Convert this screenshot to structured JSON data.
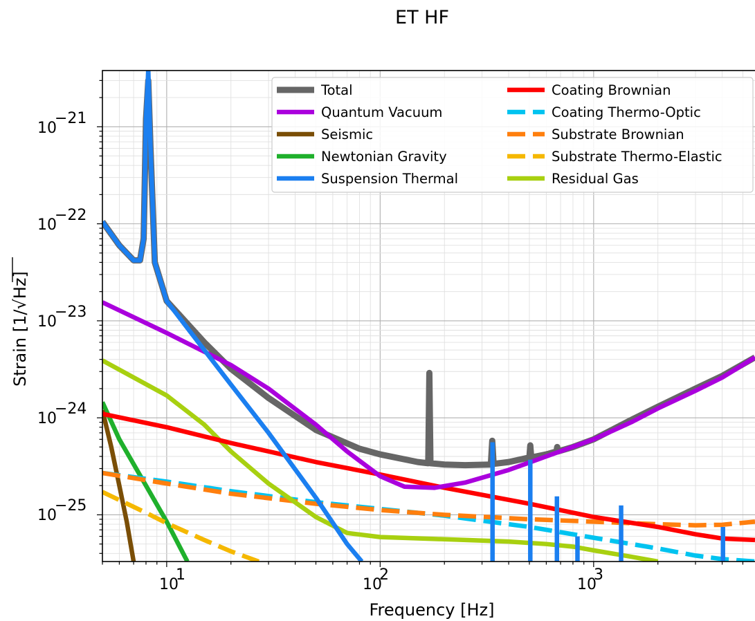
{
  "chart_data": {
    "type": "line",
    "title": "ET HF",
    "xlabel": "Frequency [Hz]",
    "ylabel_prefix": "Strain [1/",
    "ylabel_radical": "√",
    "ylabel_unit": "Hz",
    "ylabel_suffix": "]",
    "xscale": "log",
    "yscale": "log",
    "xlim": [
      5,
      5700
    ],
    "ylim": [
      3.3e-26,
      3.8e-21
    ],
    "grid": true,
    "legend_placement": "top-right",
    "x_ticks": [
      {
        "base": "10",
        "exp": "1",
        "value": 10
      },
      {
        "base": "10",
        "exp": "2",
        "value": 100
      },
      {
        "base": "10",
        "exp": "3",
        "value": 1000
      }
    ],
    "y_ticks": [
      {
        "base": "10",
        "exp": "−21",
        "value": 1e-21
      },
      {
        "base": "10",
        "exp": "−22",
        "value": 1e-22
      },
      {
        "base": "10",
        "exp": "−23",
        "value": 1e-23
      },
      {
        "base": "10",
        "exp": "−24",
        "value": 1e-24
      },
      {
        "base": "10",
        "exp": "−25",
        "value": 1e-25
      }
    ],
    "series": [
      {
        "name": "Total",
        "color": "#666666",
        "dash": false,
        "points": [
          [
            5,
            1.05e-22
          ],
          [
            6,
            6e-23
          ],
          [
            7,
            4.2e-23
          ],
          [
            7.5,
            4.2e-23
          ],
          [
            7.8,
            7e-23
          ],
          [
            8.0,
            1.2e-21
          ],
          [
            8.2,
            3e-21
          ],
          [
            8.4,
            6e-22
          ],
          [
            8.8,
            4e-23
          ],
          [
            10,
            1.6e-23
          ],
          [
            15,
            6e-24
          ],
          [
            20,
            3.2e-24
          ],
          [
            30,
            1.6e-24
          ],
          [
            50,
            7.5e-25
          ],
          [
            80,
            4.8e-25
          ],
          [
            100,
            4.2e-25
          ],
          [
            150,
            3.5e-25
          ],
          [
            168,
            3.4e-25
          ],
          [
            170,
            2.9e-24
          ],
          [
            172,
            3.4e-25
          ],
          [
            200,
            3.3e-25
          ],
          [
            250,
            3.25e-25
          ],
          [
            330,
            3.3e-25
          ],
          [
            335,
            5.8e-25
          ],
          [
            340,
            3.35e-25
          ],
          [
            400,
            3.5e-25
          ],
          [
            500,
            3.9e-25
          ],
          [
            505,
            5.2e-25
          ],
          [
            510,
            3.9e-25
          ],
          [
            600,
            4.2e-25
          ],
          [
            670,
            4.5e-25
          ],
          [
            675,
            5e-25
          ],
          [
            680,
            4.5e-25
          ],
          [
            800,
            5e-25
          ],
          [
            1000,
            6e-25
          ],
          [
            1500,
            9.5e-25
          ],
          [
            2000,
            1.3e-24
          ],
          [
            3000,
            2e-24
          ],
          [
            4000,
            2.7e-24
          ],
          [
            5700,
            4.2e-24
          ]
        ]
      },
      {
        "name": "Quantum Vacuum",
        "color": "#aa00dd",
        "dash": false,
        "points": [
          [
            5,
            1.55e-23
          ],
          [
            10,
            7.5e-24
          ],
          [
            20,
            3.5e-24
          ],
          [
            30,
            2e-24
          ],
          [
            50,
            8.5e-25
          ],
          [
            70,
            4.5e-25
          ],
          [
            100,
            2.5e-25
          ],
          [
            130,
            1.95e-25
          ],
          [
            180,
            1.9e-25
          ],
          [
            250,
            2.15e-25
          ],
          [
            400,
            2.9e-25
          ],
          [
            600,
            4e-25
          ],
          [
            1000,
            6e-25
          ],
          [
            1500,
            9e-25
          ],
          [
            2000,
            1.25e-24
          ],
          [
            3000,
            1.9e-24
          ],
          [
            4000,
            2.6e-24
          ],
          [
            5700,
            4.2e-24
          ]
        ]
      },
      {
        "name": "Seismic",
        "color": "#7a4e06",
        "dash": false,
        "points": [
          [
            5,
            1.2e-24
          ],
          [
            5.5,
            5e-25
          ],
          [
            6,
            2e-25
          ],
          [
            6.5,
            8.5e-26
          ],
          [
            7,
            3.3e-26
          ]
        ]
      },
      {
        "name": "Newtonian Gravity",
        "color": "#1fb02c",
        "dash": false,
        "points": [
          [
            5,
            1.45e-24
          ],
          [
            6,
            6e-25
          ],
          [
            8,
            2e-25
          ],
          [
            10,
            8.5e-26
          ],
          [
            12.5,
            3.3e-26
          ]
        ]
      },
      {
        "name": "Suspension Thermal",
        "color": "#1b7ff0",
        "dash": false,
        "points": [
          [
            5,
            1.05e-22
          ],
          [
            6,
            6e-23
          ],
          [
            7,
            4.2e-23
          ],
          [
            7.5,
            4.2e-23
          ],
          [
            7.8,
            7e-23
          ],
          [
            8.0,
            1.2e-21
          ],
          [
            8.2,
            3.8e-21
          ],
          [
            8.4,
            6e-22
          ],
          [
            8.8,
            4e-23
          ],
          [
            10,
            1.6e-23
          ],
          [
            15,
            5e-24
          ],
          [
            20,
            2.2e-24
          ],
          [
            30,
            7e-25
          ],
          [
            50,
            1.5e-25
          ],
          [
            70,
            5e-26
          ],
          [
            82,
            3.3e-26
          ]
        ]
      },
      {
        "name": "Coating Brownian",
        "color": "#ff0000",
        "dash": false,
        "points": [
          [
            5,
            1.1e-24
          ],
          [
            10,
            8e-25
          ],
          [
            20,
            5.5e-25
          ],
          [
            50,
            3.5e-25
          ],
          [
            100,
            2.6e-25
          ],
          [
            200,
            1.9e-25
          ],
          [
            500,
            1.3e-25
          ],
          [
            1000,
            9.5e-26
          ],
          [
            2000,
            7.5e-26
          ],
          [
            3000,
            6.3e-26
          ],
          [
            4000,
            5.7e-26
          ],
          [
            5700,
            5.5e-26
          ]
        ]
      },
      {
        "name": "Coating Thermo-Optic",
        "color": "#00c3f0",
        "dash": true,
        "points": [
          [
            5,
            2.7e-25
          ],
          [
            10,
            2.2e-25
          ],
          [
            20,
            1.75e-25
          ],
          [
            50,
            1.35e-25
          ],
          [
            100,
            1.15e-25
          ],
          [
            200,
            9.8e-26
          ],
          [
            500,
            7.5e-26
          ],
          [
            1000,
            5.8e-26
          ],
          [
            2000,
            4.5e-26
          ],
          [
            3000,
            3.8e-26
          ],
          [
            4000,
            3.5e-26
          ],
          [
            5700,
            3.3e-26
          ]
        ]
      },
      {
        "name": "Substrate Brownian",
        "color": "#ff7f0e",
        "dash": true,
        "points": [
          [
            5,
            2.7e-25
          ],
          [
            10,
            2.1e-25
          ],
          [
            20,
            1.65e-25
          ],
          [
            50,
            1.3e-25
          ],
          [
            100,
            1.12e-25
          ],
          [
            200,
            1e-25
          ],
          [
            500,
            9e-26
          ],
          [
            1000,
            8.5e-26
          ],
          [
            2000,
            8e-26
          ],
          [
            3000,
            7.8e-26
          ],
          [
            4000,
            7.9e-26
          ],
          [
            5700,
            8.5e-26
          ]
        ]
      },
      {
        "name": "Substrate Thermo-Elastic",
        "color": "#f5b800",
        "dash": true,
        "points": [
          [
            5,
            1.72e-25
          ],
          [
            8,
            1.05e-25
          ],
          [
            10,
            8.2e-26
          ],
          [
            15,
            5.5e-26
          ],
          [
            20,
            4.2e-26
          ],
          [
            27,
            3.3e-26
          ]
        ]
      },
      {
        "name": "Residual Gas",
        "color": "#a8d010",
        "dash": false,
        "points": [
          [
            5,
            3.9e-24
          ],
          [
            10,
            1.7e-24
          ],
          [
            15,
            8.5e-25
          ],
          [
            20,
            4.5e-25
          ],
          [
            30,
            2.1e-25
          ],
          [
            50,
            9.5e-26
          ],
          [
            70,
            6.5e-26
          ],
          [
            100,
            5.9e-26
          ],
          [
            200,
            5.6e-26
          ],
          [
            400,
            5.3e-26
          ],
          [
            600,
            5e-26
          ],
          [
            800,
            4.7e-26
          ],
          [
            1000,
            4.3e-26
          ],
          [
            1500,
            3.7e-26
          ],
          [
            2000,
            3.3e-26
          ]
        ]
      }
    ],
    "resonance_lines": [
      {
        "series": "Suspension Thermal",
        "freq": 336,
        "top": 5.6e-25
      },
      {
        "series": "Suspension Thermal",
        "freq": 505,
        "top": 3.7e-25
      },
      {
        "series": "Suspension Thermal",
        "freq": 673,
        "top": 1.55e-25
      },
      {
        "series": "Suspension Thermal",
        "freq": 840,
        "top": 6e-26
      },
      {
        "series": "Suspension Thermal",
        "freq": 1345,
        "top": 1.25e-25
      },
      {
        "series": "Suspension Thermal",
        "freq": 4035,
        "top": 7.5e-26
      }
    ]
  }
}
